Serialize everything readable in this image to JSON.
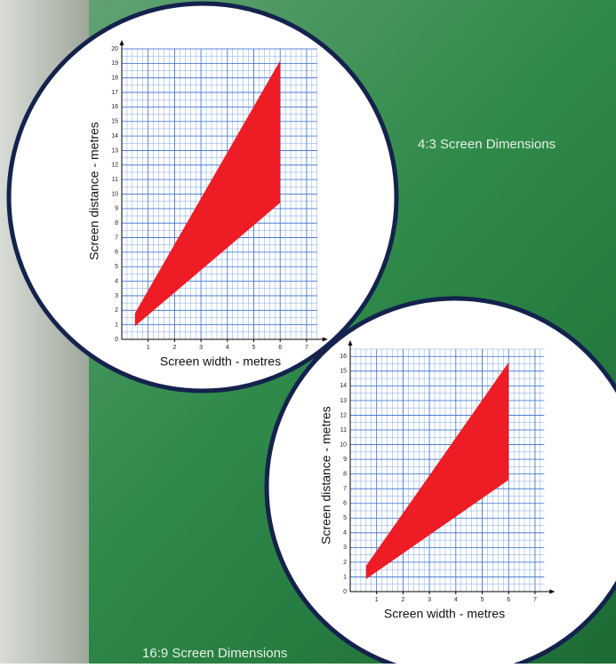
{
  "chart_data": [
    {
      "type": "area",
      "title": "4:3 Screen Dimensions",
      "x_label": "Screen width - metres",
      "y_label": "Screen distance - metres",
      "x": [
        0.5,
        6
      ],
      "upper": [
        1.8,
        19.2
      ],
      "lower": [
        0.9,
        9.4
      ],
      "color": "#ee1c24",
      "xlim": [
        0,
        7.4
      ],
      "ylim": [
        0,
        20
      ],
      "xticks": [
        1,
        2,
        3,
        4,
        5,
        6,
        7
      ],
      "yticks": [
        0,
        1,
        2,
        3,
        4,
        5,
        6,
        7,
        8,
        9,
        10,
        11,
        12,
        13,
        14,
        15,
        16,
        17,
        18,
        19,
        20
      ],
      "grid": true
    },
    {
      "type": "area",
      "title": "16:9 Screen Dimensions",
      "x_label": "Screen width - metres",
      "y_label": "Screen distance - metres",
      "x": [
        0.6,
        6
      ],
      "upper": [
        1.75,
        15.6
      ],
      "lower": [
        0.85,
        7.6
      ],
      "color": "#ee1c24",
      "xlim": [
        0,
        7.35
      ],
      "ylim": [
        0,
        16.5
      ],
      "xticks": [
        1,
        2,
        3,
        4,
        5,
        6,
        7
      ],
      "yticks": [
        0,
        1,
        2,
        3,
        4,
        5,
        6,
        7,
        8,
        9,
        10,
        11,
        12,
        13,
        14,
        15,
        16
      ],
      "grid": true
    }
  ]
}
